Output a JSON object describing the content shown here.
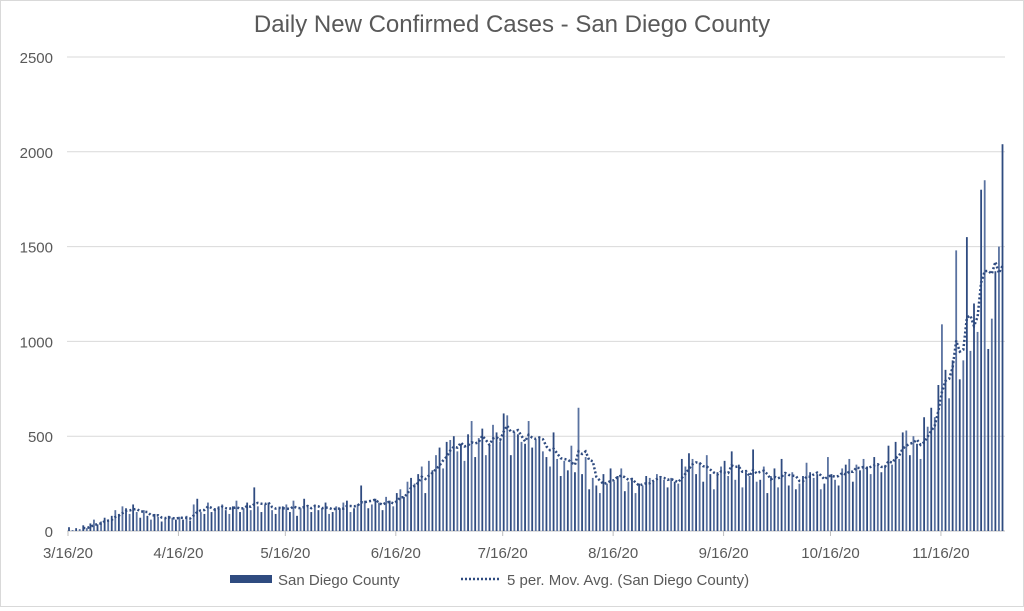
{
  "chart_data": {
    "type": "bar",
    "title": "Daily New Confirmed Cases - San Diego County",
    "xlabel": "",
    "ylabel": "",
    "ylim": [
      0,
      2500
    ],
    "yticks": [
      0,
      500,
      1000,
      1500,
      2000,
      2500
    ],
    "ytick_labels": [
      "0",
      "500",
      "1000",
      "1500",
      "2000",
      "2500"
    ],
    "x_start": "3/16/20",
    "xticks": [
      {
        "day": 0,
        "label": "3/16/20"
      },
      {
        "day": 31,
        "label": "4/16/20"
      },
      {
        "day": 61,
        "label": "5/16/20"
      },
      {
        "day": 92,
        "label": "6/16/20"
      },
      {
        "day": 122,
        "label": "7/16/20"
      },
      {
        "day": 153,
        "label": "8/16/20"
      },
      {
        "day": 184,
        "label": "9/16/20"
      },
      {
        "day": 214,
        "label": "10/16/20"
      },
      {
        "day": 245,
        "label": "11/16/20"
      }
    ],
    "grid": true,
    "legend_position": "bottom",
    "series": [
      {
        "name": "San Diego County",
        "type": "bar",
        "color": "#2f4b80",
        "values": [
          20,
          5,
          15,
          10,
          30,
          15,
          40,
          60,
          35,
          50,
          70,
          60,
          80,
          110,
          90,
          130,
          120,
          90,
          140,
          100,
          70,
          110,
          80,
          60,
          90,
          75,
          50,
          65,
          80,
          70,
          60,
          75,
          60,
          80,
          55,
          140,
          170,
          100,
          90,
          150,
          100,
          120,
          130,
          140,
          110,
          90,
          130,
          160,
          100,
          120,
          150,
          110,
          230,
          130,
          100,
          140,
          150,
          110,
          90,
          120,
          130,
          140,
          100,
          160,
          80,
          120,
          170,
          130,
          100,
          140,
          110,
          120,
          150,
          90,
          100,
          130,
          120,
          150,
          160,
          100,
          120,
          140,
          240,
          160,
          120,
          140,
          170,
          150,
          110,
          180,
          160,
          130,
          200,
          220,
          180,
          260,
          280,
          250,
          300,
          340,
          200,
          370,
          320,
          400,
          440,
          330,
          470,
          480,
          500,
          420,
          460,
          370,
          510,
          580,
          390,
          490,
          540,
          400,
          450,
          560,
          520,
          470,
          620,
          610,
          400,
          520,
          510,
          470,
          460,
          580,
          440,
          480,
          500,
          420,
          390,
          340,
          520,
          380,
          290,
          370,
          320,
          450,
          310,
          650,
          300,
          390,
          220,
          280,
          240,
          200,
          300,
          250,
          330,
          260,
          290,
          330,
          210,
          260,
          280,
          200,
          250,
          240,
          290,
          280,
          260,
          300,
          290,
          270,
          230,
          280,
          260,
          250,
          380,
          340,
          410,
          380,
          300,
          360,
          260,
          400,
          300,
          220,
          310,
          340,
          370,
          290,
          420,
          270,
          350,
          230,
          310,
          290,
          430,
          260,
          270,
          340,
          200,
          290,
          330,
          230,
          380,
          300,
          240,
          310,
          220,
          250,
          290,
          360,
          310,
          280,
          300,
          220,
          250,
          390,
          300,
          270,
          240,
          330,
          350,
          380,
          260,
          350,
          320,
          380,
          340,
          300,
          390,
          350,
          310,
          340,
          450,
          350,
          470,
          380,
          520,
          530,
          400,
          500,
          460,
          380,
          600,
          550,
          650,
          600,
          770,
          1090,
          850,
          700,
          900,
          1480,
          800,
          900,
          1550,
          950,
          1200,
          1050,
          1800,
          1850,
          960,
          1120,
          1370,
          1500,
          2040
        ]
      },
      {
        "name": "5 per. Mov. Avg. (San Diego County)",
        "type": "moving-average",
        "period": 5,
        "color": "#2f4b80"
      }
    ]
  }
}
